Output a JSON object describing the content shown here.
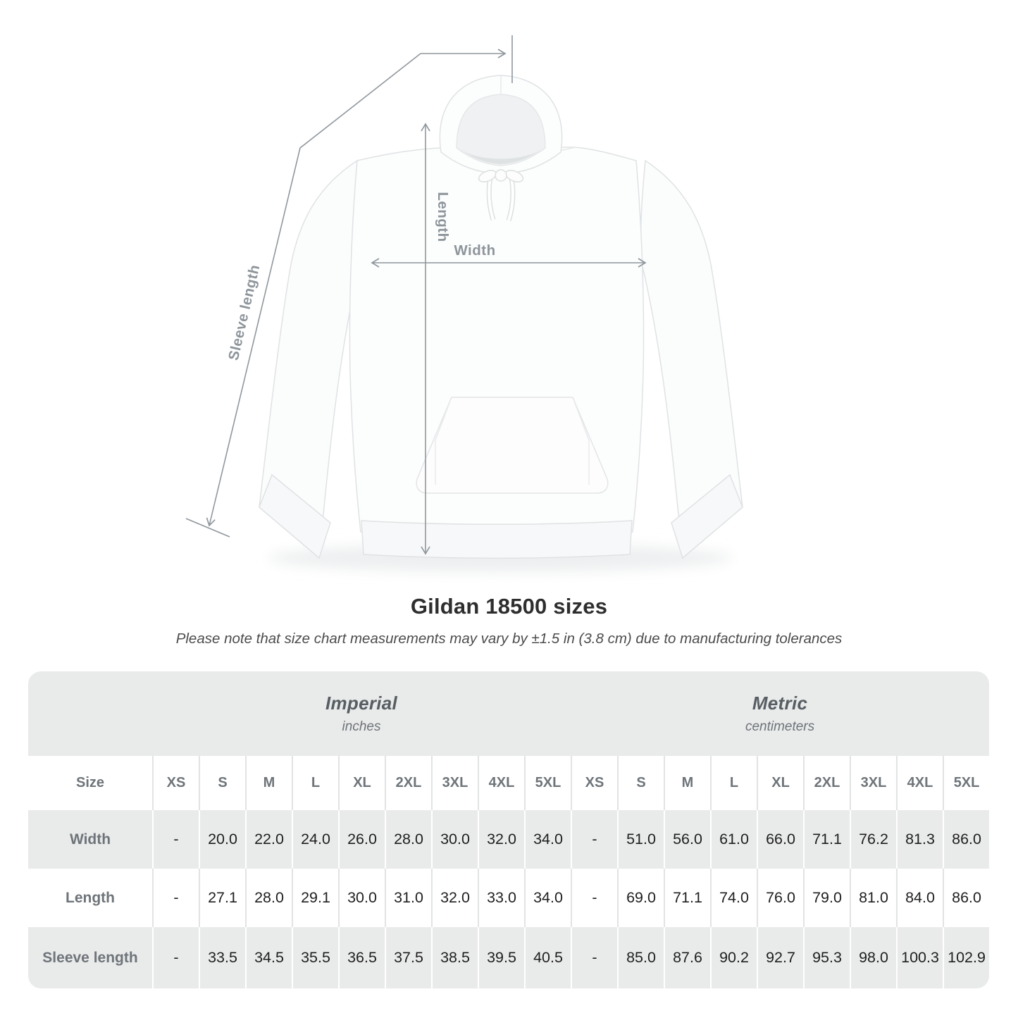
{
  "page": {
    "title": "Gildan 18500 sizes",
    "note": "Please note that size chart measurements may vary by ±1.5 in (3.8 cm) due to manufacturing tolerances"
  },
  "diagram": {
    "length_label": "Length",
    "width_label": "Width",
    "sleeve_label": "Sleeve length"
  },
  "chart_data": {
    "type": "table",
    "title": "Gildan 18500 sizes",
    "note": "Please note that size chart measurements may vary by ±1.5 in (3.8 cm) due to manufacturing tolerances",
    "unit_groups": [
      {
        "label": "Imperial",
        "unit": "inches"
      },
      {
        "label": "Metric",
        "unit": "centimeters"
      }
    ],
    "corner_label": "Size",
    "sizes": [
      "XS",
      "S",
      "M",
      "L",
      "XL",
      "2XL",
      "3XL",
      "4XL",
      "5XL"
    ],
    "rows": [
      {
        "label": "Width",
        "imperial_in": [
          "-",
          "20.0",
          "22.0",
          "24.0",
          "26.0",
          "28.0",
          "30.0",
          "32.0",
          "34.0"
        ],
        "metric_cm": [
          "-",
          "51.0",
          "56.0",
          "61.0",
          "66.0",
          "71.1",
          "76.2",
          "81.3",
          "86.0"
        ]
      },
      {
        "label": "Length",
        "imperial_in": [
          "-",
          "27.1",
          "28.0",
          "29.1",
          "30.0",
          "31.0",
          "32.0",
          "33.0",
          "34.0"
        ],
        "metric_cm": [
          "-",
          "69.0",
          "71.1",
          "74.0",
          "76.0",
          "79.0",
          "81.0",
          "84.0",
          "86.0"
        ]
      },
      {
        "label": "Sleeve length",
        "imperial_in": [
          "-",
          "33.5",
          "34.5",
          "35.5",
          "36.5",
          "37.5",
          "38.5",
          "39.5",
          "40.5"
        ],
        "metric_cm": [
          "-",
          "85.0",
          "87.6",
          "90.2",
          "92.7",
          "95.3",
          "98.0",
          "100.3",
          "102.9"
        ]
      }
    ]
  },
  "colors": {
    "stripe_gray": "#e9eaea",
    "separator_on_white": "#e2e3e3",
    "separator_on_gray": "#ffffff",
    "value_text": "#1f1f1f",
    "label_text": "#6e7479",
    "band_text": "#575e63",
    "measure_line": "#8f979c",
    "measure_label": "#8d959b",
    "title_text": "#2e2e2e"
  }
}
